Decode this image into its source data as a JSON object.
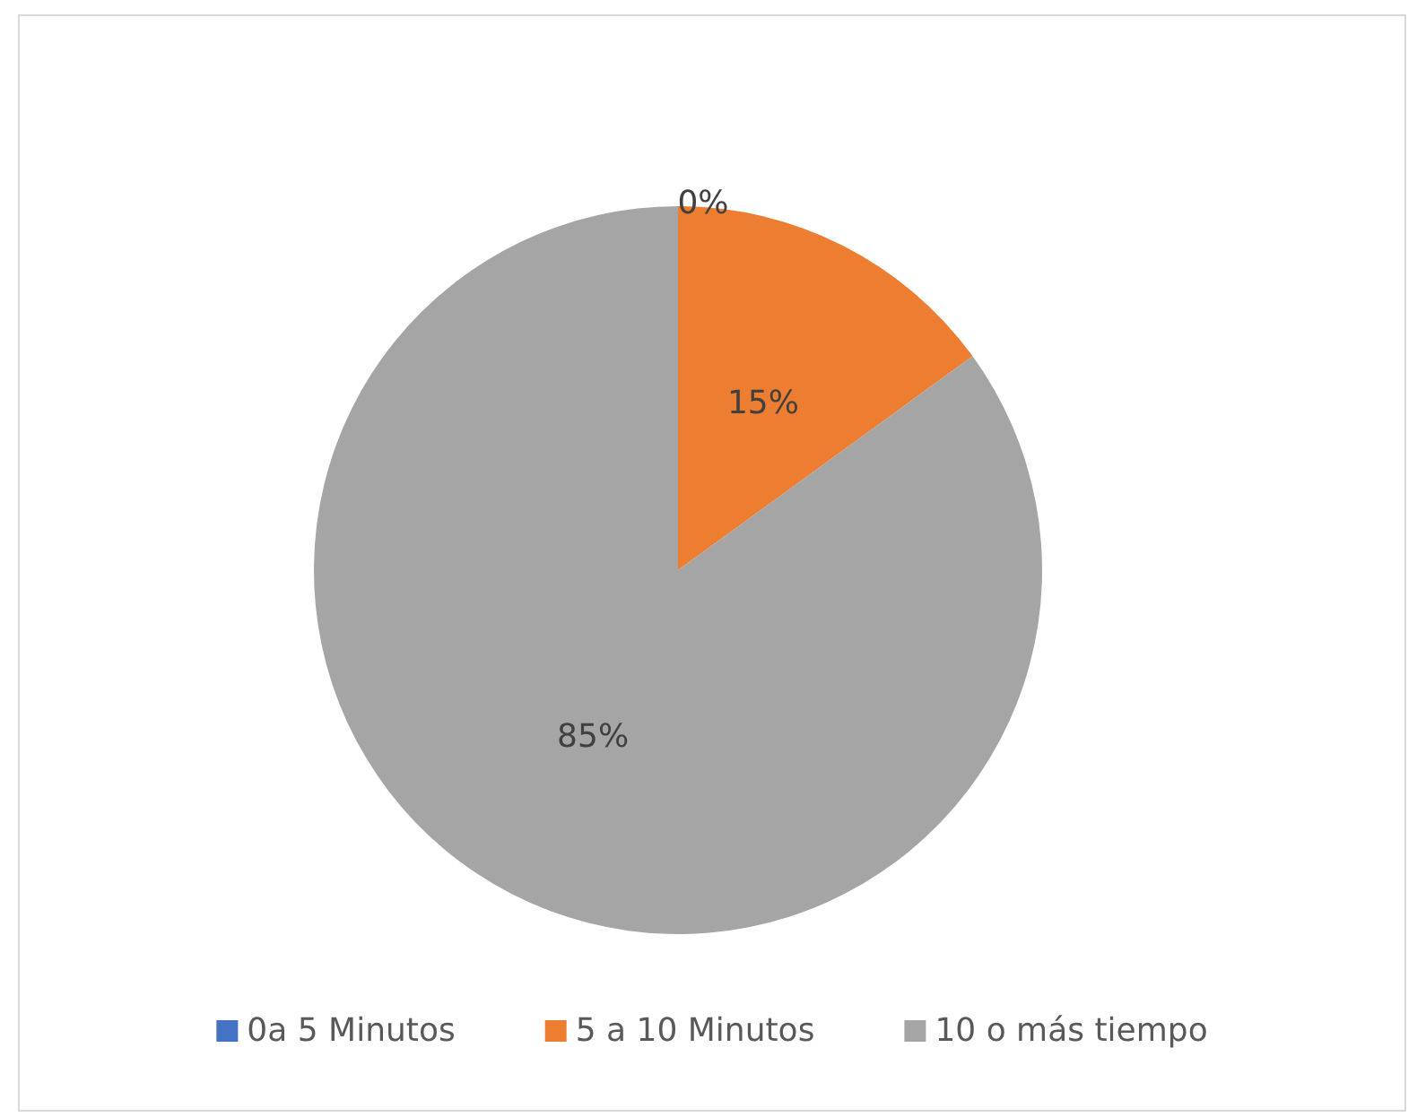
{
  "chart_data": {
    "type": "pie",
    "categories": [
      "0a 5 Minutos",
      "5 a 10 Minutos",
      "10 o más tiempo"
    ],
    "values": [
      0,
      15,
      85
    ],
    "colors": [
      "#4472c4",
      "#ed7d31",
      "#a5a5a5"
    ],
    "value_labels": [
      "0%",
      "15%",
      "85%"
    ],
    "legend": "bottom"
  }
}
